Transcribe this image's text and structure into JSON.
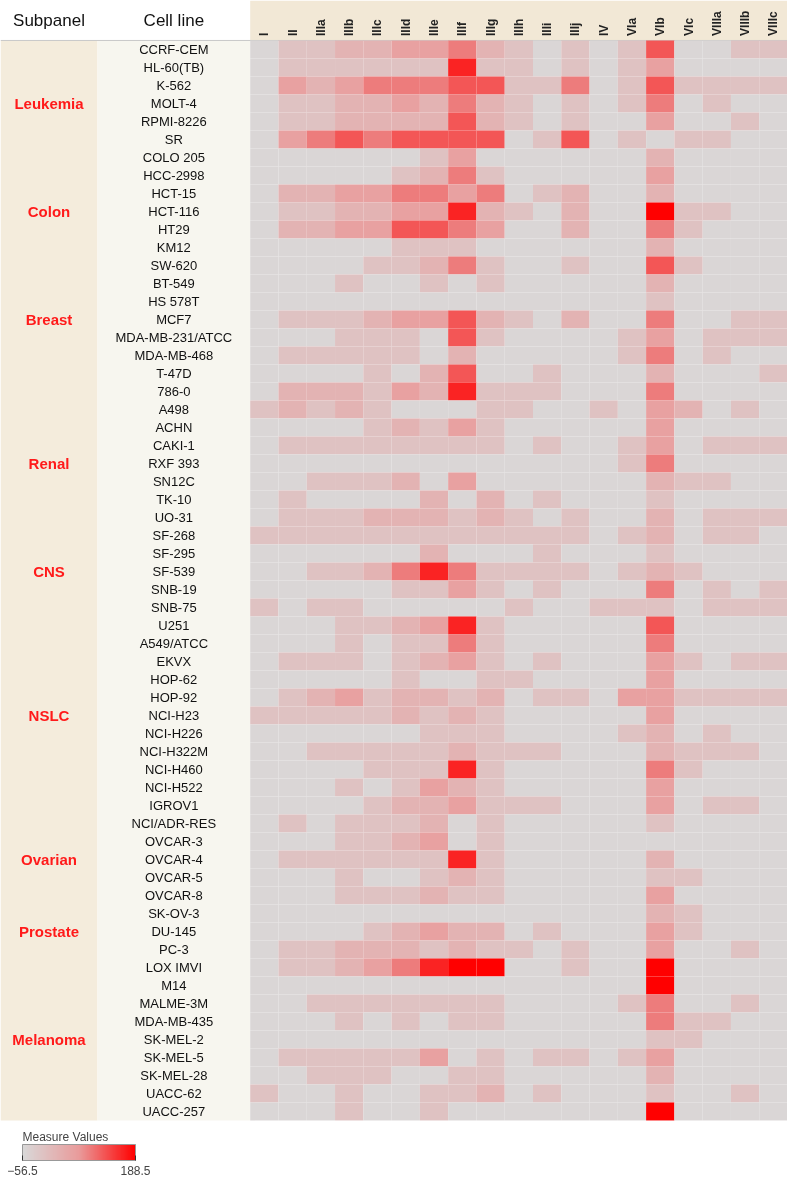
{
  "chart_data": {
    "type": "heatmap",
    "clabel": "Measure Values",
    "clim": [
      -56.5,
      188.5
    ],
    "cticks": [
      -56.5,
      188.5
    ],
    "annotations": [
      "Subpanel",
      "Cell line"
    ],
    "categories": [
      "I",
      "II",
      "IIIa",
      "IIIb",
      "IIIc",
      "IIId",
      "IIIe",
      "IIIf",
      "IIIg",
      "IIIh",
      "IIIi",
      "IIIj",
      "IV",
      "VIa",
      "VIb",
      "VIc",
      "VIIIa",
      "VIIIb",
      "VIIIc"
    ],
    "y_categories": [
      "CCRF-CEM",
      "HL-60(TB)",
      "K-562",
      "MOLT-4",
      "RPMI-8226",
      "SR",
      "COLO 205",
      "HCC-2998",
      "HCT-15",
      "HCT-116",
      "HT29",
      "KM12",
      "SW-620",
      "BT-549",
      "HS 578T",
      "MCF7",
      "MDA-MB-231/ATCC",
      "MDA-MB-468",
      "T-47D",
      "786-0",
      "A498",
      "ACHN",
      "CAKI-1",
      "RXF 393",
      "SN12C",
      "TK-10",
      "UO-31",
      "SF-268",
      "SF-295",
      "SF-539",
      "SNB-19",
      "SNB-75",
      "U251",
      "A549/ATCC",
      "EKVX",
      "HOP-62",
      "HOP-92",
      "NCI-H23",
      "NCI-H226",
      "NCI-H322M",
      "NCI-H460",
      "NCI-H522",
      "IGROV1",
      "NCI/ADR-RES",
      "OVCAR-3",
      "OVCAR-4",
      "OVCAR-5",
      "OVCAR-8",
      "SK-OV-3",
      "DU-145",
      "PC-3",
      "LOX IMVI",
      "M14",
      "MALME-3M",
      "MDA-MB-435",
      "SK-MEL-2",
      "SK-MEL-5",
      "SK-MEL-28",
      "UACC-62",
      "UACC-257"
    ],
    "y2_categories": [
      null,
      null,
      null,
      "Leukemia",
      null,
      null,
      null,
      null,
      null,
      "Colon",
      null,
      null,
      null,
      null,
      null,
      "Breast",
      null,
      null,
      null,
      null,
      null,
      null,
      null,
      "Renal",
      null,
      null,
      null,
      null,
      null,
      "CNS",
      null,
      null,
      null,
      null,
      null,
      null,
      null,
      "NSLC",
      null,
      null,
      null,
      null,
      null,
      null,
      null,
      "Ovarian",
      null,
      null,
      null,
      "Prostate",
      null,
      null,
      null,
      null,
      null,
      "Melanoma",
      null,
      null,
      null,
      null
    ],
    "cells": [
      [
        -50,
        -10,
        -10,
        20,
        20,
        55,
        55,
        90,
        20,
        -10,
        -50,
        -10,
        -50,
        -10,
        120,
        -50,
        -50,
        -10,
        -10
      ],
      [
        -50,
        -10,
        -10,
        -10,
        -10,
        -10,
        -10,
        160,
        -10,
        -10,
        -50,
        -10,
        -50,
        -10,
        55,
        -50,
        -50,
        -50,
        -50
      ],
      [
        -50,
        55,
        20,
        55,
        90,
        90,
        90,
        120,
        120,
        -10,
        -10,
        90,
        -50,
        -10,
        120,
        -10,
        -10,
        -10,
        -10
      ],
      [
        -50,
        -10,
        -10,
        20,
        20,
        55,
        20,
        90,
        20,
        -10,
        -50,
        -10,
        -50,
        -10,
        90,
        -50,
        -10,
        -50,
        -50
      ],
      [
        -50,
        -10,
        -10,
        20,
        20,
        20,
        20,
        120,
        20,
        -10,
        -50,
        -10,
        -50,
        -50,
        55,
        -50,
        -50,
        -10,
        -50
      ],
      [
        -50,
        55,
        90,
        120,
        90,
        120,
        120,
        120,
        120,
        -50,
        -10,
        120,
        -50,
        -10,
        -50,
        -10,
        -10,
        -50,
        -50
      ],
      [
        -50,
        -50,
        -50,
        -50,
        -50,
        -50,
        -10,
        55,
        -50,
        -50,
        -50,
        -50,
        -50,
        -50,
        20,
        -50,
        -50,
        -50,
        -50
      ],
      [
        -50,
        -50,
        -50,
        -50,
        -50,
        -10,
        20,
        90,
        -10,
        -50,
        -50,
        -50,
        -50,
        -50,
        55,
        -50,
        -50,
        -50,
        -50
      ],
      [
        -50,
        20,
        20,
        55,
        55,
        90,
        90,
        55,
        90,
        -50,
        -10,
        20,
        -50,
        -50,
        20,
        -50,
        -50,
        -50,
        -50
      ],
      [
        -50,
        -10,
        -10,
        20,
        20,
        55,
        55,
        160,
        20,
        -10,
        -50,
        20,
        -50,
        -50,
        188,
        -10,
        -10,
        -50,
        -50
      ],
      [
        -50,
        20,
        20,
        55,
        55,
        120,
        120,
        90,
        55,
        -50,
        -50,
        20,
        -50,
        -50,
        90,
        -10,
        -50,
        -50,
        -50
      ],
      [
        -50,
        -50,
        -50,
        -50,
        -50,
        -10,
        -10,
        -10,
        -50,
        -50,
        -50,
        -50,
        -50,
        -50,
        20,
        -50,
        -50,
        -50,
        -50
      ],
      [
        -50,
        -50,
        -50,
        -50,
        -10,
        -10,
        20,
        90,
        -10,
        -50,
        -50,
        -10,
        -50,
        -50,
        120,
        -10,
        -50,
        -50,
        -50
      ],
      [
        -50,
        -50,
        -50,
        -10,
        -50,
        -50,
        -10,
        -50,
        -10,
        -50,
        -50,
        -50,
        -50,
        -50,
        20,
        -50,
        -50,
        -50,
        -50
      ],
      [
        -50,
        -50,
        -50,
        -50,
        -50,
        -50,
        -50,
        -50,
        -50,
        -50,
        -50,
        -50,
        -50,
        -50,
        -10,
        -50,
        -50,
        -50,
        -50
      ],
      [
        -50,
        -10,
        -10,
        -10,
        20,
        55,
        55,
        120,
        20,
        -10,
        -50,
        20,
        -50,
        -50,
        90,
        -50,
        -50,
        -10,
        -10
      ],
      [
        -50,
        -50,
        -50,
        -10,
        -10,
        -10,
        -50,
        120,
        -10,
        -50,
        -50,
        -50,
        -50,
        -10,
        55,
        -50,
        -10,
        -10,
        -10
      ],
      [
        -50,
        -10,
        -10,
        -10,
        -10,
        -10,
        -50,
        20,
        -50,
        -50,
        -50,
        -50,
        -50,
        -10,
        90,
        -50,
        -10,
        -50,
        -50
      ],
      [
        -50,
        -50,
        -50,
        -50,
        -10,
        -50,
        20,
        120,
        -50,
        -50,
        -10,
        -50,
        -50,
        -50,
        20,
        -50,
        -50,
        -50,
        -10
      ],
      [
        -50,
        20,
        20,
        20,
        -10,
        55,
        20,
        160,
        -10,
        -10,
        -10,
        -50,
        -50,
        -50,
        90,
        -50,
        -50,
        -50,
        -50
      ],
      [
        -10,
        20,
        -10,
        20,
        -10,
        -50,
        -50,
        -50,
        -10,
        -10,
        -50,
        -50,
        -10,
        -50,
        55,
        20,
        -50,
        -10,
        -50
      ],
      [
        -50,
        -50,
        -50,
        -50,
        -10,
        20,
        -10,
        55,
        -10,
        -50,
        -50,
        -50,
        -50,
        -50,
        55,
        -50,
        -50,
        -50,
        -50
      ],
      [
        -50,
        -10,
        -10,
        -10,
        -10,
        -10,
        -10,
        -10,
        -10,
        -50,
        -10,
        -50,
        -50,
        -10,
        55,
        -50,
        -10,
        -10,
        -10
      ],
      [
        -50,
        -50,
        -50,
        -50,
        -50,
        -50,
        -50,
        -50,
        -50,
        -50,
        -50,
        -50,
        -50,
        -10,
        90,
        -50,
        -50,
        -50,
        -50
      ],
      [
        -50,
        -50,
        -10,
        -10,
        -10,
        20,
        -50,
        55,
        -50,
        -50,
        -50,
        -50,
        -50,
        -50,
        20,
        -10,
        -10,
        -50,
        -50
      ],
      [
        -50,
        -10,
        -50,
        -50,
        -50,
        -50,
        20,
        -50,
        20,
        -50,
        -10,
        -50,
        -50,
        -50,
        -10,
        -50,
        -50,
        -50,
        -50
      ],
      [
        -50,
        -10,
        -10,
        -10,
        20,
        20,
        20,
        -10,
        20,
        -10,
        -50,
        -10,
        -50,
        -50,
        20,
        -50,
        -10,
        -10,
        -10
      ],
      [
        -10,
        -10,
        -10,
        -10,
        -10,
        -10,
        -10,
        -10,
        -10,
        -10,
        -10,
        -10,
        -50,
        -10,
        20,
        -50,
        -10,
        -10,
        -50
      ],
      [
        -50,
        -50,
        -50,
        -50,
        -50,
        -50,
        20,
        -50,
        -50,
        -50,
        -10,
        -50,
        -50,
        -50,
        -10,
        -50,
        -50,
        -50,
        -50
      ],
      [
        -50,
        -50,
        -10,
        -10,
        20,
        90,
        160,
        90,
        -10,
        -10,
        -10,
        -10,
        -50,
        -10,
        20,
        -10,
        -50,
        -50,
        -50
      ],
      [
        -50,
        -50,
        -50,
        -50,
        -50,
        -10,
        -10,
        55,
        -10,
        -50,
        -10,
        -50,
        -50,
        -50,
        90,
        -50,
        -10,
        -50,
        -10
      ],
      [
        -10,
        -50,
        -10,
        -10,
        -50,
        -50,
        -50,
        -50,
        -50,
        -10,
        -50,
        -50,
        -10,
        -10,
        -10,
        -50,
        -10,
        -10,
        -10
      ],
      [
        -50,
        -50,
        -50,
        -10,
        -10,
        20,
        55,
        160,
        -10,
        -50,
        -50,
        -50,
        -50,
        -50,
        120,
        -50,
        -50,
        -50,
        -50
      ],
      [
        -50,
        -50,
        -50,
        -10,
        -50,
        -10,
        -10,
        90,
        -10,
        -50,
        -50,
        -50,
        -50,
        -50,
        90,
        -50,
        -50,
        -50,
        -50
      ],
      [
        -50,
        -10,
        -10,
        -10,
        -50,
        -10,
        20,
        55,
        -10,
        -50,
        -10,
        -50,
        -50,
        -50,
        55,
        -10,
        -50,
        -10,
        -10
      ],
      [
        -50,
        -50,
        -50,
        -50,
        -50,
        -10,
        -50,
        -50,
        -10,
        -10,
        -50,
        -50,
        -50,
        -50,
        55,
        -50,
        -50,
        -50,
        -50
      ],
      [
        -50,
        -10,
        20,
        55,
        -10,
        20,
        20,
        -10,
        20,
        -50,
        -10,
        -10,
        -50,
        55,
        55,
        -10,
        -10,
        -10,
        -10
      ],
      [
        -10,
        -10,
        -10,
        -10,
        -10,
        20,
        -10,
        20,
        -10,
        -50,
        -50,
        -50,
        -50,
        -50,
        55,
        -50,
        -50,
        -50,
        -50
      ],
      [
        -50,
        -50,
        -50,
        -50,
        -50,
        -50,
        -10,
        -10,
        -10,
        -50,
        -50,
        -50,
        -50,
        -10,
        20,
        -50,
        -10,
        -50,
        -50
      ],
      [
        -50,
        -50,
        -10,
        -10,
        -10,
        -10,
        -10,
        20,
        -10,
        -10,
        -10,
        -50,
        -50,
        -50,
        20,
        -10,
        -10,
        -10,
        -50
      ],
      [
        -50,
        -50,
        -50,
        -50,
        -10,
        -10,
        -10,
        160,
        -10,
        -50,
        -50,
        -50,
        -50,
        -50,
        90,
        -10,
        -50,
        -50,
        -50
      ],
      [
        -50,
        -50,
        -50,
        -10,
        -50,
        -10,
        55,
        20,
        -10,
        -50,
        -50,
        -50,
        -50,
        -50,
        55,
        -50,
        -50,
        -50,
        -50
      ],
      [
        -50,
        -50,
        -50,
        -50,
        -10,
        20,
        20,
        55,
        -10,
        -10,
        -10,
        -50,
        -50,
        -50,
        55,
        -50,
        -10,
        -10,
        -50
      ],
      [
        -50,
        -10,
        -50,
        -10,
        -10,
        -10,
        20,
        -50,
        -10,
        -50,
        -50,
        -50,
        -50,
        -50,
        -10,
        -50,
        -50,
        -50,
        -50
      ],
      [
        -50,
        -50,
        -50,
        -10,
        -10,
        20,
        55,
        -50,
        -10,
        -50,
        -50,
        -50,
        -50,
        -50,
        -50,
        -50,
        -50,
        -50,
        -50
      ],
      [
        -50,
        -10,
        -10,
        -10,
        -10,
        -10,
        -10,
        160,
        -10,
        -50,
        -50,
        -50,
        -50,
        -50,
        20,
        -50,
        -50,
        -50,
        -50
      ],
      [
        -50,
        -50,
        -50,
        -10,
        -50,
        -50,
        -10,
        20,
        -10,
        -50,
        -50,
        -50,
        -50,
        -50,
        -10,
        -10,
        -50,
        -50,
        -50
      ],
      [
        -50,
        -50,
        -50,
        -10,
        -10,
        -10,
        20,
        -10,
        -10,
        -50,
        -50,
        -50,
        -50,
        -50,
        55,
        -50,
        -50,
        -50,
        -50
      ],
      [
        -50,
        -50,
        -50,
        -50,
        -50,
        -50,
        -50,
        -50,
        -50,
        -50,
        -50,
        -50,
        -50,
        -50,
        20,
        -10,
        -50,
        -50,
        -50
      ],
      [
        -50,
        -50,
        -50,
        -50,
        -10,
        20,
        55,
        20,
        20,
        -50,
        -10,
        -50,
        -50,
        -50,
        55,
        -10,
        -50,
        -50,
        -50
      ],
      [
        -50,
        -10,
        -10,
        20,
        20,
        20,
        -10,
        20,
        -10,
        -10,
        -50,
        -10,
        -50,
        -50,
        55,
        -50,
        -50,
        -10,
        -50
      ],
      [
        -50,
        -10,
        -10,
        20,
        55,
        90,
        160,
        188,
        188,
        -50,
        -50,
        -10,
        -50,
        -50,
        188,
        -50,
        -50,
        -50,
        -50
      ],
      [
        -50,
        -50,
        -50,
        -50,
        -50,
        -50,
        -50,
        -50,
        -50,
        -50,
        -50,
        -50,
        -50,
        -50,
        188,
        -50,
        -50,
        -50,
        -50
      ],
      [
        -50,
        -50,
        -10,
        -10,
        -10,
        -10,
        -10,
        -10,
        -10,
        -50,
        -50,
        -50,
        -50,
        -10,
        90,
        -50,
        -50,
        -10,
        -50
      ],
      [
        -50,
        -50,
        -50,
        -10,
        -50,
        -10,
        -50,
        -10,
        -10,
        -50,
        -50,
        -50,
        -50,
        -50,
        90,
        -10,
        -10,
        -50,
        -50
      ],
      [
        -50,
        -50,
        -50,
        -50,
        -50,
        -50,
        -50,
        -50,
        -50,
        -50,
        -50,
        -50,
        -50,
        -50,
        -10,
        -10,
        -50,
        -50,
        -50
      ],
      [
        -50,
        -10,
        -10,
        -10,
        -10,
        -10,
        55,
        -50,
        -10,
        -50,
        -10,
        -10,
        -50,
        -10,
        55,
        -50,
        -50,
        -50,
        -50
      ],
      [
        -50,
        -50,
        -10,
        -10,
        -10,
        -50,
        -50,
        -10,
        -10,
        -50,
        -50,
        -50,
        -50,
        -50,
        20,
        -50,
        -50,
        -50,
        -50
      ],
      [
        -10,
        -50,
        -50,
        -10,
        -50,
        -50,
        -10,
        -10,
        20,
        -50,
        -10,
        -50,
        -50,
        -50,
        -10,
        -50,
        -50,
        -10,
        -50
      ],
      [
        -50,
        -50,
        -50,
        -10,
        -50,
        -50,
        -10,
        -50,
        -50,
        -50,
        -50,
        -50,
        -50,
        -50,
        188,
        -50,
        -50,
        -50,
        -50
      ]
    ]
  }
}
